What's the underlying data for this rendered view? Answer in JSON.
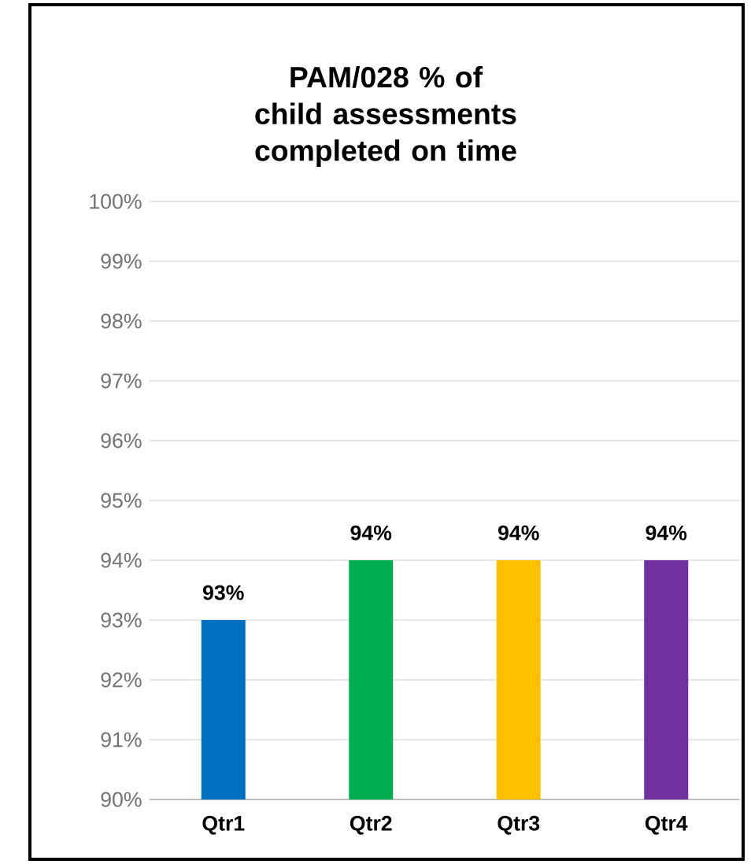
{
  "chart_data": {
    "type": "bar",
    "title": "PAM/028 % of child assessments completed on time",
    "categories": [
      "Qtr1",
      "Qtr2",
      "Qtr3",
      "Qtr4"
    ],
    "values": [
      93,
      94,
      94,
      94
    ],
    "colors": [
      "#0070c0",
      "#00b050",
      "#ffc000",
      "#7030a0"
    ],
    "value_labels": [
      "93%",
      "94%",
      "94%",
      "94%"
    ],
    "ylim": [
      90,
      100
    ],
    "yticks": [
      {
        "value": 90,
        "label": "90%"
      },
      {
        "value": 91,
        "label": "91%"
      },
      {
        "value": 92,
        "label": "92%"
      },
      {
        "value": 93,
        "label": "93%"
      },
      {
        "value": 94,
        "label": "94%"
      },
      {
        "value": 95,
        "label": "95%"
      },
      {
        "value": 96,
        "label": "96%"
      },
      {
        "value": 97,
        "label": "97%"
      },
      {
        "value": 98,
        "label": "98%"
      },
      {
        "value": 99,
        "label": "99%"
      },
      {
        "value": 100,
        "label": "100%"
      }
    ],
    "grid": "y"
  }
}
